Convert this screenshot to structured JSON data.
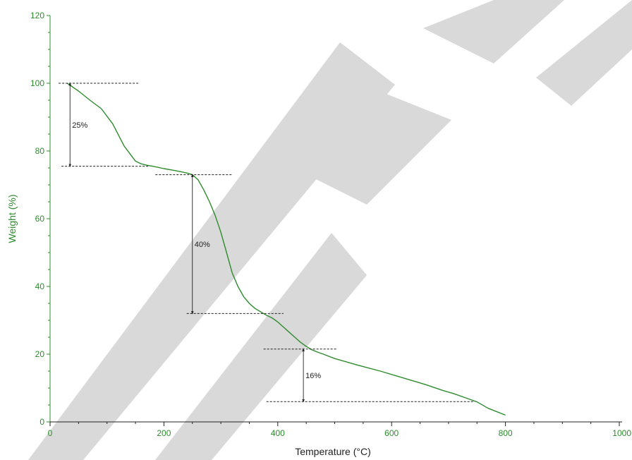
{
  "chart_data": {
    "type": "line",
    "title": "",
    "xlabel": "Temperature (°C)",
    "ylabel": "Weight (%)",
    "xlim": [
      0,
      1000
    ],
    "ylim": [
      0,
      120
    ],
    "x_ticks": [
      "0",
      "200",
      "400",
      "600",
      "800",
      "1000"
    ],
    "y_ticks": [
      "0",
      "20",
      "40",
      "60",
      "80",
      "100",
      "120"
    ],
    "grid": false,
    "legend": "none",
    "line_color": "#2e8b2e",
    "series": [
      {
        "x": [
          30,
          50,
          70,
          90,
          110,
          130,
          150,
          160,
          170,
          180,
          200,
          220,
          240,
          250,
          260,
          270,
          280,
          290,
          300,
          310,
          320,
          330,
          340,
          350,
          360,
          370,
          380,
          390,
          400,
          410,
          420,
          430,
          440,
          450,
          460,
          470,
          480,
          500,
          540,
          580,
          620,
          660,
          690,
          710,
          730,
          750,
          770,
          800
        ],
        "y": [
          100,
          97.7,
          95,
          92.5,
          88,
          81.5,
          77,
          76.2,
          75.8,
          75.5,
          74.8,
          74.2,
          73.5,
          73,
          71.5,
          68.5,
          65,
          61,
          56,
          50,
          44,
          40,
          37,
          35,
          33.5,
          32.5,
          31.5,
          30.7,
          29.5,
          28,
          26.5,
          25,
          23.5,
          22.3,
          21.3,
          20.6,
          20,
          18.7,
          16.8,
          15,
          13,
          11,
          9.3,
          8.3,
          7.1,
          5.9,
          4,
          2
        ]
      }
    ],
    "annotations": [
      {
        "label": "25%",
        "from_y": 100,
        "to_y": 75.5,
        "arrow_x": 35,
        "dash_top_x": [
          15,
          155
        ],
        "dash_bottom_x": [
          20,
          175
        ]
      },
      {
        "label": "40%",
        "from_y": 73,
        "to_y": 32,
        "arrow_x": 250,
        "dash_top_x": [
          185,
          320
        ],
        "dash_bottom_x": [
          240,
          410
        ]
      },
      {
        "label": "16%",
        "from_y": 21.5,
        "to_y": 6,
        "arrow_x": 445,
        "dash_top_x": [
          375,
          505
        ],
        "dash_bottom_x": [
          380,
          745
        ]
      }
    ]
  },
  "watermark": {
    "text": "RETRACTED",
    "color": "#d9d9d9"
  }
}
